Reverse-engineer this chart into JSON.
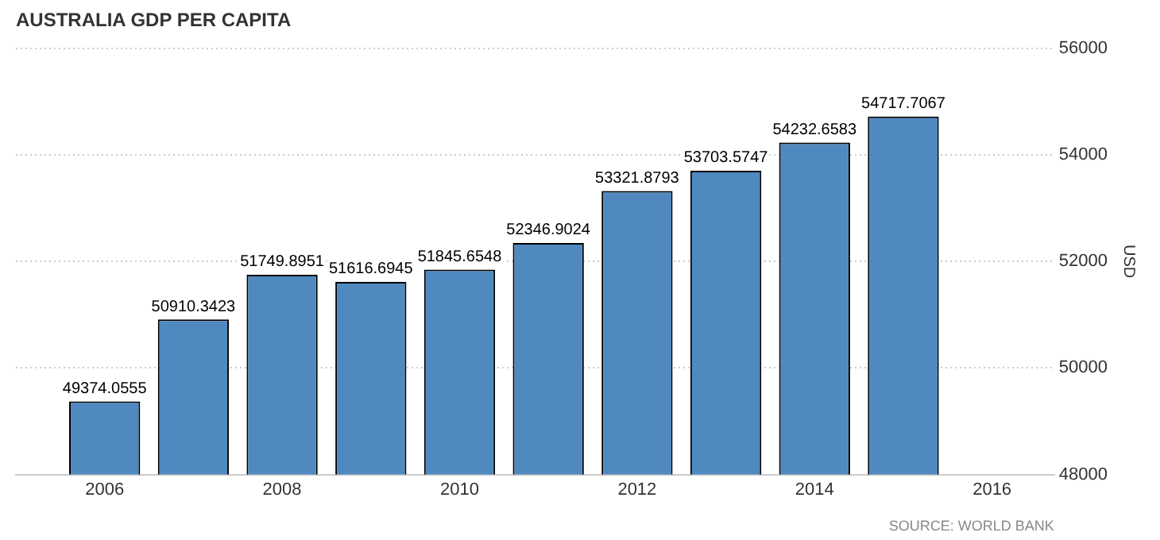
{
  "chart_data": {
    "type": "bar",
    "title": "AUSTRALIA GDP PER CAPITA",
    "ylabel": "USD",
    "x": [
      2006,
      2007,
      2008,
      2009,
      2010,
      2011,
      2012,
      2013,
      2014,
      2015
    ],
    "values": [
      49374.0555,
      50910.3423,
      51749.8951,
      51616.6945,
      51845.6548,
      52346.9024,
      53321.8793,
      53703.5747,
      54232.6583,
      54717.7067
    ],
    "color": "#5088c0",
    "xlim": [
      2005,
      2016.7
    ],
    "xticks": [
      2006,
      2008,
      2010,
      2012,
      2014,
      2016
    ],
    "ylim": [
      48000,
      56000
    ],
    "yticks": [
      48000,
      50000,
      52000,
      54000,
      56000
    ],
    "grid": "y",
    "legend": false,
    "data_labels": true,
    "annotations": [
      "SOURCE: WORLD BANK"
    ]
  }
}
